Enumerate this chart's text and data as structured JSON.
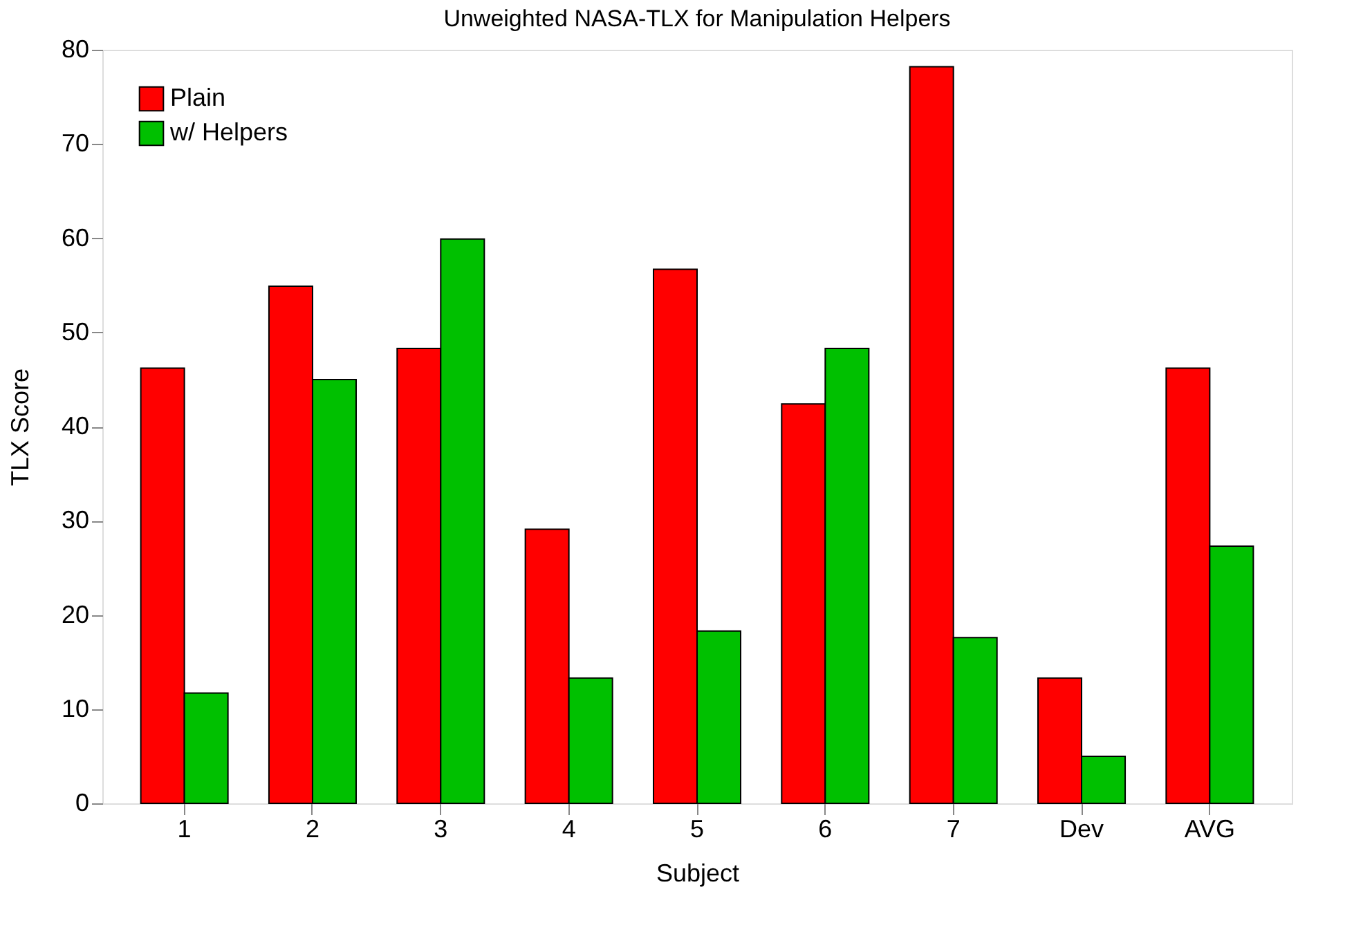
{
  "chart_data": {
    "type": "bar",
    "title": "Unweighted NASA-TLX for Manipulation Helpers",
    "xlabel": "Subject",
    "ylabel": "TLX Score",
    "categories": [
      "1",
      "2",
      "3",
      "4",
      "5",
      "6",
      "7",
      "Dev",
      "AVG"
    ],
    "series": [
      {
        "name": "Plain",
        "color": "#ff0000",
        "values": [
          46.2,
          54.9,
          48.3,
          29.1,
          56.7,
          42.4,
          78.2,
          13.3,
          46.2
        ]
      },
      {
        "name": "w/ Helpers",
        "color": "#00c000",
        "values": [
          11.7,
          45.0,
          59.9,
          13.3,
          18.3,
          48.3,
          17.6,
          5.0,
          27.3
        ]
      }
    ],
    "ylim": [
      0,
      80
    ],
    "yticks": [
      0,
      10,
      20,
      30,
      40,
      50,
      60,
      70,
      80
    ],
    "grid": false,
    "legend": "top left"
  }
}
